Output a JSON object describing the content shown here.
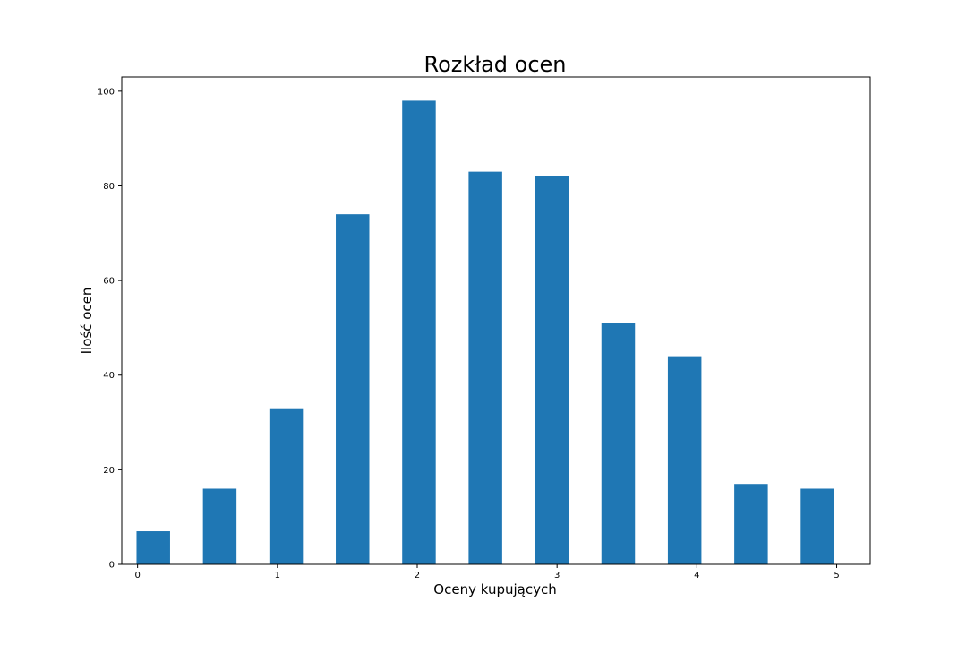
{
  "chart_data": {
    "type": "bar",
    "title": "Rozkład ocen",
    "xlabel": "Oceny kupujących",
    "ylabel": "Ilość ocen",
    "bar_color": "#1f77b4",
    "bar_width": 0.24,
    "x_centers": [
      0.1125,
      0.5875,
      1.0625,
      1.5375,
      2.0125,
      2.4875,
      2.9625,
      3.4375,
      3.9125,
      4.3875,
      4.8625
    ],
    "values": [
      7,
      16,
      33,
      74,
      98,
      83,
      82,
      51,
      44,
      17,
      16
    ],
    "xlim": [
      -0.113,
      5.24
    ],
    "ylim": [
      0,
      103
    ],
    "xticks": [
      0,
      1,
      2,
      3,
      4,
      5
    ],
    "xtick_labels": [
      "0",
      "1",
      "2",
      "3",
      "4",
      "5"
    ],
    "yticks": [
      0,
      20,
      40,
      60,
      80,
      100
    ],
    "ytick_labels": [
      "0",
      "20",
      "40",
      "60",
      "80",
      "100"
    ],
    "grid": false,
    "legend": "none"
  }
}
